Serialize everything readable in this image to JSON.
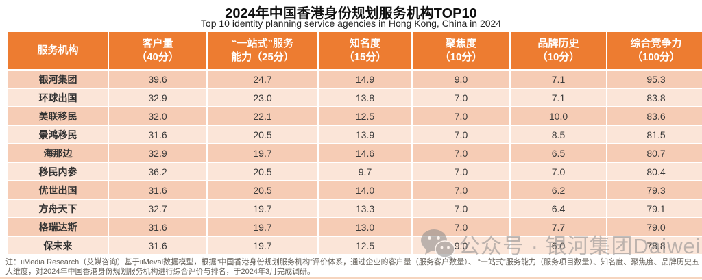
{
  "chart_data": {
    "type": "table",
    "title": "2024年中国香港身份规划服务机构TOP10",
    "subtitle": "Top 10 identity planning service agencies in Hong Kong, China in 2024",
    "columns": [
      "服务机构",
      "客户量（40分）",
      "“一站式”服务能力（25分）",
      "知名度（15分）",
      "聚焦度（10分）",
      "品牌历史（10分）",
      "综合竞争力（100分）"
    ],
    "rows": [
      [
        "银河集团",
        39.6,
        24.7,
        14.9,
        9.0,
        7.1,
        95.3
      ],
      [
        "环球出国",
        32.9,
        23.0,
        13.8,
        7.0,
        7.1,
        83.8
      ],
      [
        "美联移民",
        32.0,
        22.1,
        12.5,
        7.0,
        10.0,
        83.6
      ],
      [
        "景鸿移民",
        31.6,
        20.5,
        13.9,
        7.0,
        8.5,
        81.5
      ],
      [
        "海那边",
        32.9,
        19.7,
        14.6,
        7.0,
        6.5,
        80.7
      ],
      [
        "移民内参",
        36.2,
        20.5,
        9.7,
        7.0,
        7.0,
        80.4
      ],
      [
        "优世出国",
        31.6,
        20.5,
        14.0,
        7.0,
        6.2,
        79.3
      ],
      [
        "方舟天下",
        32.7,
        19.7,
        13.3,
        7.0,
        6.4,
        79.1
      ],
      [
        "格瑞达斯",
        31.6,
        19.7,
        13.0,
        7.0,
        7.7,
        79.0
      ],
      [
        "保未来",
        31.6,
        19.7,
        12.5,
        9.0,
        6.0,
        78.8
      ]
    ]
  },
  "table": {
    "header_lines": [
      {
        "key": "agency",
        "line1": "服务机构",
        "line2": ""
      },
      {
        "key": "customer-volume",
        "line1": "客户量",
        "line2": "（40分）"
      },
      {
        "key": "one-stop-service",
        "line1": "“一站式”服务",
        "line2": "能力（25分）"
      },
      {
        "key": "awareness",
        "line1": "知名度",
        "line2": "（15分）"
      },
      {
        "key": "focus",
        "line1": "聚焦度",
        "line2": "（10分）"
      },
      {
        "key": "brand-history",
        "line1": "品牌历史",
        "line2": "（10分）"
      },
      {
        "key": "overall-competitiveness",
        "line1": "综合竞争力",
        "line2": "（100分）"
      }
    ]
  },
  "note": {
    "text": "注：iiMedia Research（艾媒咨询）基于iiMeval数据模型，根据“中国香港身份规划服务机构”评价体系，通过企业的客户量（服务客户数量）、 “一站式”服务能力（服务项目数量）、知名度、聚焦度、品牌历史五大维度，对2024年中国香港身份规划服务机构进行综合评价与排名，于2024年3月完成调研。"
  },
  "watermark": {
    "icon": "wechat-icon",
    "text": "公众号 · 银河集团Daiwei"
  },
  "colors": {
    "header_bg": "#ED7C31",
    "row_odd": "#F6CCB5",
    "row_even": "#FBE5D8",
    "header_text": "#FFFFFF",
    "watermark_gray": "#8A8A8A"
  }
}
